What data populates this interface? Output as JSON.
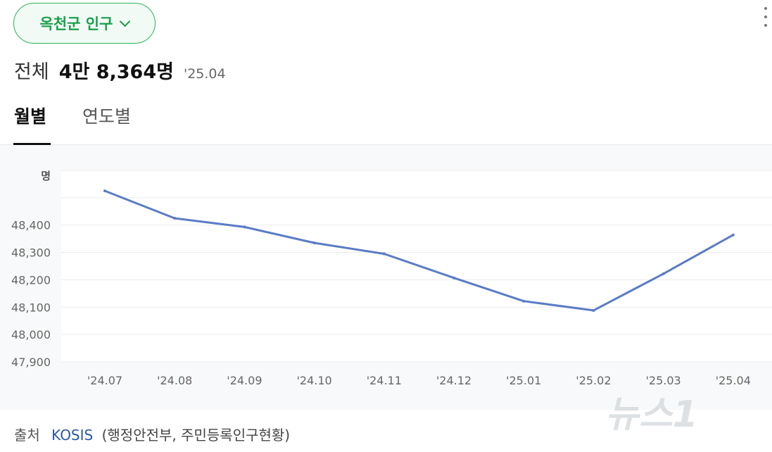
{
  "region_selector": {
    "label": "옥천군 인구"
  },
  "summary": {
    "label": "전체",
    "value": "4만 8,364명",
    "date": "'25.04"
  },
  "tabs": [
    {
      "label": "월별",
      "active": true
    },
    {
      "label": "연도별",
      "active": false
    }
  ],
  "source": {
    "label": "출처",
    "link": "KOSIS",
    "detail": "(행정안전부, 주민등록인구현황)"
  },
  "watermark": "뉴스1",
  "colors": {
    "accent": "#1b9e4b",
    "line": "#5a7cc4",
    "link": "#2a57a5"
  },
  "chart_data": {
    "type": "line",
    "ylabel": "명",
    "categories": [
      "'24.07",
      "'24.08",
      "'24.09",
      "'24.10",
      "'24.11",
      "'24.12",
      "'25.01",
      "'25.02",
      "'25.03",
      "'25.04"
    ],
    "series": [
      {
        "values": [
          48525,
          48425,
          48393,
          48335,
          48295,
          48207,
          48122,
          48088,
          48222,
          48364
        ]
      }
    ],
    "yticks": [
      47900,
      48000,
      48100,
      48200,
      48300,
      48400
    ],
    "ytick_labels": [
      "47,900",
      "48,000",
      "48,100",
      "48,200",
      "48,300",
      "48,400"
    ],
    "ylim": [
      47900,
      48600
    ],
    "grid": true
  }
}
